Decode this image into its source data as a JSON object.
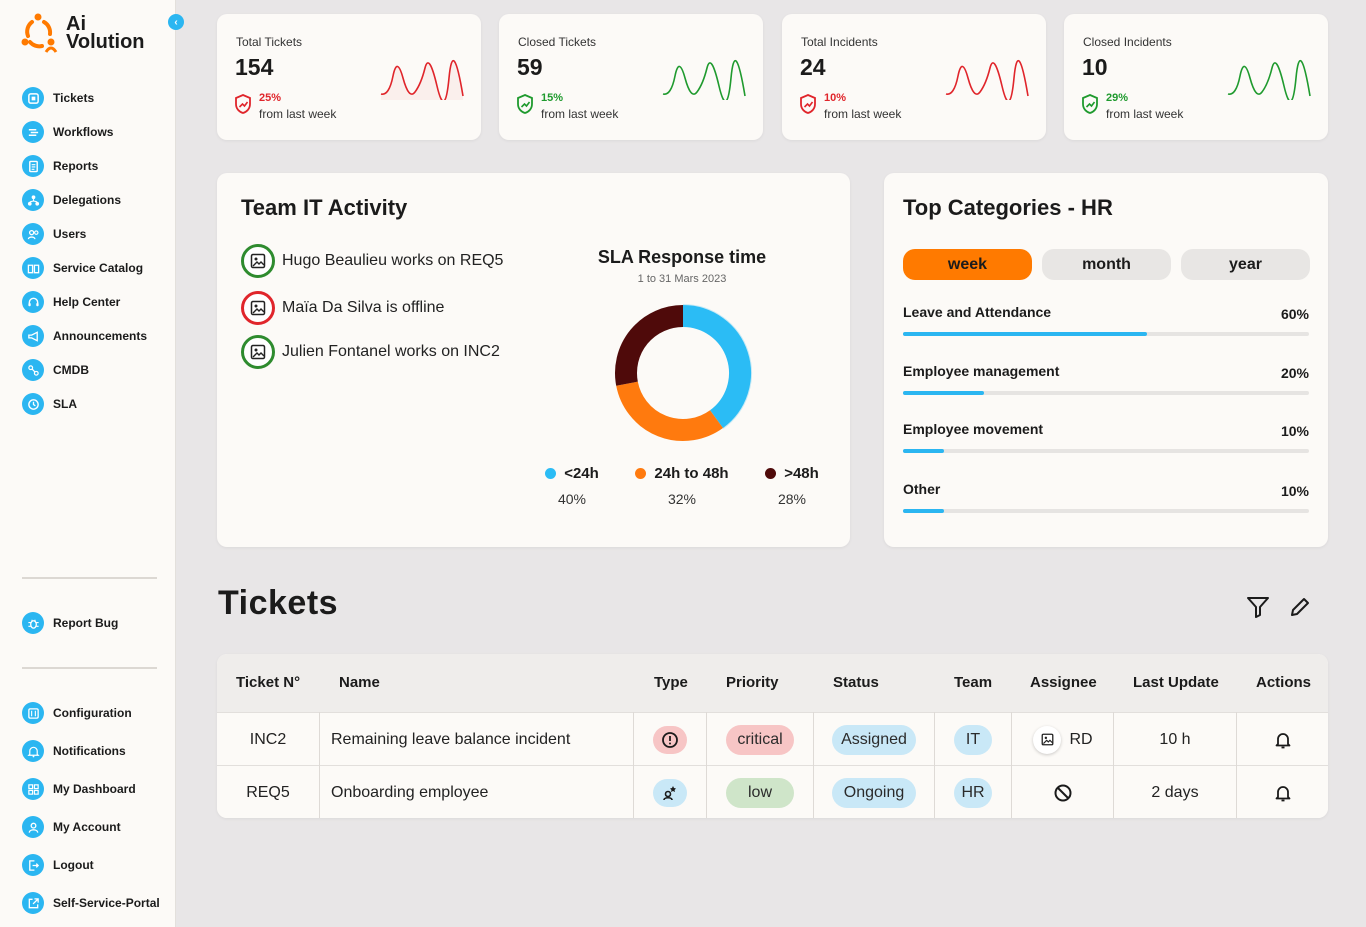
{
  "app": {
    "brand_line1": "Ai",
    "brand_line2": "Volution"
  },
  "sidebar": {
    "items": [
      {
        "label": "Tickets",
        "icon": "ticket-icon"
      },
      {
        "label": "Workflows",
        "icon": "workflow-icon"
      },
      {
        "label": "Reports",
        "icon": "report-icon"
      },
      {
        "label": "Delegations",
        "icon": "delegation-icon"
      },
      {
        "label": "Users",
        "icon": "users-icon"
      },
      {
        "label": "Service Catalog",
        "icon": "catalog-icon"
      },
      {
        "label": "Help Center",
        "icon": "headset-icon"
      },
      {
        "label": "Announcements",
        "icon": "megaphone-icon"
      },
      {
        "label": "CMDB",
        "icon": "cmdb-icon"
      },
      {
        "label": "SLA",
        "icon": "clock-icon"
      }
    ],
    "report_bug": "Report Bug",
    "bottom_items": [
      {
        "label": "Configuration",
        "icon": "configuration-icon"
      },
      {
        "label": "Notifications",
        "icon": "bell-icon"
      },
      {
        "label": "My Dashboard",
        "icon": "dashboard-icon"
      },
      {
        "label": "My Account",
        "icon": "account-icon"
      },
      {
        "label": "Logout",
        "icon": "logout-icon"
      },
      {
        "label": "Self-Service-Portal",
        "icon": "external-link-icon"
      }
    ]
  },
  "stats": [
    {
      "title": "Total Tickets",
      "value": "154",
      "pct": "25%",
      "sub": "from last week",
      "color": "#e0252b"
    },
    {
      "title": "Closed Tickets",
      "value": "59",
      "pct": "15%",
      "sub": "from last week",
      "color": "#1f9a2e"
    },
    {
      "title": "Total Incidents",
      "value": "24",
      "pct": "10%",
      "sub": "from last week",
      "color": "#e0252b"
    },
    {
      "title": "Closed Incidents",
      "value": "10",
      "pct": "29%",
      "sub": "from last week",
      "color": "#1f9a2e"
    }
  ],
  "activity": {
    "title": "Team IT Activity",
    "items": [
      {
        "text": "Hugo Beaulieu works on REQ5",
        "status_color": "#2e8b2e"
      },
      {
        "text": "Maïa Da Silva is offline",
        "status_color": "#e0252b"
      },
      {
        "text": "Julien Fontanel works on INC2",
        "status_color": "#2e8b2e"
      }
    ]
  },
  "chart_data": {
    "type": "pie",
    "title": "SLA Response time",
    "subtitle": "1 to 31 Mars 2023",
    "categories": [
      "<24h",
      "24h to 48h",
      ">48h"
    ],
    "values": [
      40,
      32,
      28
    ],
    "labels": [
      "40%",
      "32%",
      "28%"
    ],
    "colors": [
      "#2bbcf5",
      "#ff7a0e",
      "#4f0a0a"
    ],
    "legend": "bottom"
  },
  "categories": {
    "title": "Top Categories - HR",
    "periods": [
      "week",
      "month",
      "year"
    ],
    "active_period": "week",
    "rows": [
      {
        "label": "Leave and Attendance",
        "pct": "60%",
        "value": 0.6
      },
      {
        "label": "Employee management",
        "pct": "20%",
        "value": 0.2
      },
      {
        "label": "Employee movement",
        "pct": "10%",
        "value": 0.1
      },
      {
        "label": "Other",
        "pct": "10%",
        "value": 0.1
      }
    ]
  },
  "tickets": {
    "title": "Tickets",
    "columns": [
      "Ticket N°",
      "Name",
      "Type",
      "Priority",
      "Status",
      "Team",
      "Assignee",
      "Last Update",
      "Actions"
    ],
    "rows": [
      {
        "id": "INC2",
        "name": "Remaining leave balance incident",
        "type_icon": "alert-circle-icon",
        "priority": "critical",
        "status": "Assigned",
        "team": "IT",
        "assignee": "RD",
        "last_update": "10 h"
      },
      {
        "id": "REQ5",
        "name": "Onboarding employee",
        "type_icon": "request-icon",
        "priority": "low",
        "status": "Ongoing",
        "team": "HR",
        "assignee_icon": "unassigned-icon",
        "last_update": "2 days"
      }
    ]
  }
}
